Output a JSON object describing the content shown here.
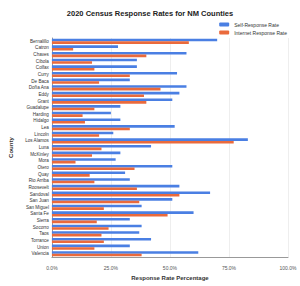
{
  "chart_data": {
    "type": "bar",
    "orientation": "horizontal",
    "title": "2020 Census Response Rates for NM Counties",
    "x_label": "Response Rate Percentage",
    "y_label": "County",
    "categories": [
      "Bernalillo",
      "Catron",
      "Chaves",
      "Cibola",
      "Colfax",
      "Curry",
      "De Baca",
      "Doña Ana",
      "Eddy",
      "Grant",
      "Guadalupe",
      "Harding",
      "Hidalgo",
      "Lea",
      "Lincoln",
      "Los Alamos",
      "Luna",
      "McKinley",
      "Mora",
      "Otero",
      "Quay",
      "Rio Arriba",
      "Roosevelt",
      "Sandoval",
      "San Juan",
      "San Miguel",
      "Santa Fe",
      "Sierra",
      "Socorro",
      "Taos",
      "Torrance",
      "Union",
      "Valencia"
    ],
    "series": [
      {
        "name": "Self-Response Rate",
        "color": "#4a7fe3",
        "values": [
          70,
          28,
          57,
          36,
          36,
          53,
          33,
          57,
          54,
          51,
          29,
          25,
          29,
          52,
          26,
          83,
          42,
          29,
          27,
          51,
          31,
          33,
          54,
          67,
          51,
          38,
          60,
          33,
          38,
          37,
          42,
          33,
          62
        ]
      },
      {
        "name": "Internet Response Rate",
        "color": "#ea6a3c",
        "values": [
          58,
          9,
          40,
          17,
          18,
          33,
          20,
          46,
          39,
          40,
          18,
          13,
          14,
          33,
          20,
          77,
          21,
          17,
          10,
          35,
          16,
          18,
          36,
          54,
          37,
          22,
          49,
          19,
          24,
          21,
          22,
          18,
          38
        ]
      }
    ],
    "xlim": [
      0,
      100
    ],
    "xticks": [
      {
        "value": 0,
        "label": "0.0%"
      },
      {
        "value": 25,
        "label": "25.0%"
      },
      {
        "value": 50,
        "label": "50.0%"
      },
      {
        "value": 75,
        "label": "75.0%"
      },
      {
        "value": 100,
        "label": "100.0%"
      }
    ],
    "grid": true,
    "legend": "upper right"
  }
}
